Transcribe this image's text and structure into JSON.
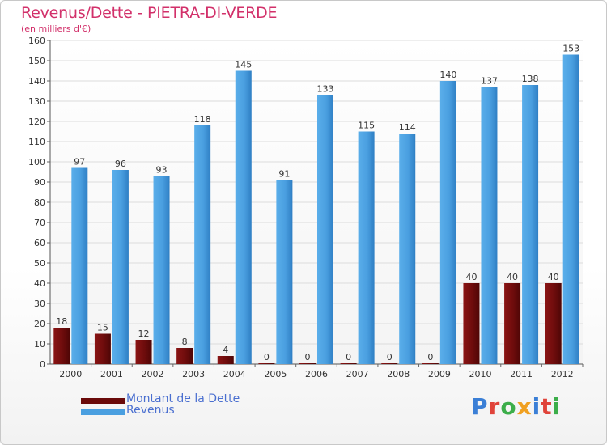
{
  "title": "Revenus/Dette - PIETRA-DI-VERDE",
  "subtitle": "(en milliers d'€)",
  "logo": "Proxiti",
  "colors": {
    "dette": "#7a0c0c",
    "revenus": "#4a9fe0",
    "title": "#d2306a",
    "legend_text": "#4a6fd0"
  },
  "chart_data": {
    "type": "bar",
    "categories": [
      "2000",
      "2001",
      "2002",
      "2003",
      "2004",
      "2005",
      "2006",
      "2007",
      "2008",
      "2009",
      "2010",
      "2011",
      "2012"
    ],
    "series": [
      {
        "name": "Montant de la Dette",
        "values": [
          18,
          15,
          12,
          8,
          4,
          0,
          0,
          0,
          0,
          0,
          40,
          40,
          40
        ]
      },
      {
        "name": "Revenus",
        "values": [
          97,
          96,
          93,
          118,
          145,
          91,
          133,
          115,
          114,
          140,
          137,
          138,
          153
        ]
      }
    ],
    "ylim": [
      0,
      160
    ],
    "yticks": [
      0,
      10,
      20,
      30,
      40,
      50,
      60,
      70,
      80,
      90,
      100,
      110,
      120,
      130,
      140,
      150,
      160
    ],
    "grid": true,
    "legend": "bottom-left"
  }
}
